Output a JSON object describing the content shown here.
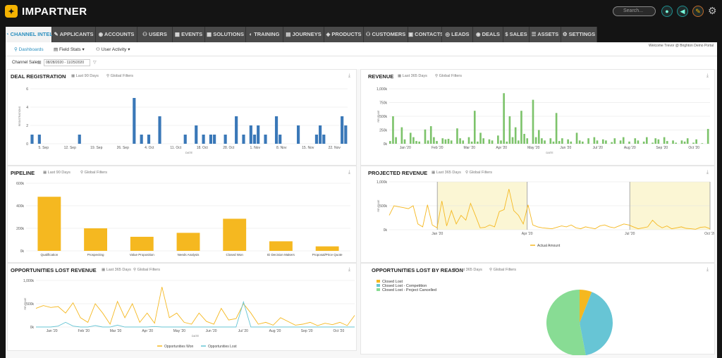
{
  "app": {
    "brand": "IMPARTNER",
    "logo_icon": "hexagon-logo-icon",
    "search_placeholder": "Search..."
  },
  "top_icons": [
    "user-icon",
    "megaphone-icon",
    "pen-icon",
    "gear-icon"
  ],
  "nav_tabs": [
    {
      "label": "CHANNEL INTEL",
      "icon": "chart-icon",
      "active": true
    },
    {
      "label": "APPLICANTS",
      "icon": "pen-icon"
    },
    {
      "label": "ACCOUNTS",
      "icon": "eye-icon"
    },
    {
      "label": "USERS",
      "icon": "users-icon"
    },
    {
      "label": "EVENTS",
      "icon": "calendar-icon"
    },
    {
      "label": "SOLUTIONS",
      "icon": "grid-icon"
    },
    {
      "label": "TRAINING",
      "icon": "training-icon"
    },
    {
      "label": "JOURNEYS",
      "icon": "book-icon"
    },
    {
      "label": "PRODUCTS",
      "icon": "box-icon"
    },
    {
      "label": "CUSTOMERS",
      "icon": "customers-icon"
    },
    {
      "label": "CONTACTS",
      "icon": "contact-card-icon"
    },
    {
      "label": "LEADS",
      "icon": "leads-icon"
    },
    {
      "label": "DEALS",
      "icon": "deals-icon"
    },
    {
      "label": "SALES",
      "icon": "dollar-icon"
    },
    {
      "label": "ASSETS",
      "icon": "list-icon"
    },
    {
      "label": "SETTINGS",
      "icon": "gear-icon"
    }
  ],
  "subnav": {
    "dashboards": "Dashboards",
    "field_stats": "Field Stats",
    "user_activity": "User Activity",
    "welcome": "Welcome Trevor @ Brighton Demo Portal"
  },
  "filter": {
    "label": "Channel Sales",
    "date_range": "08/28/2020 - 11/25/2020"
  },
  "colors": {
    "blue": "#3a78b8",
    "green": "#7dc36b",
    "orange": "#f5b820",
    "pie_teal": "#67c5d5",
    "pie_green": "#88dc94",
    "band": "#fbf6d4"
  },
  "panels": {
    "deal_registration": {
      "title": "DEAL REGISTRATION",
      "range": "Last 90 Days",
      "filter": "Global Filters"
    },
    "revenue": {
      "title": "REVENUE",
      "range": "Last 365 Days",
      "filter": "Global Filters"
    },
    "pipeline": {
      "title": "PIPELINE",
      "range": "Last 90 Days",
      "filter": "Global Filters"
    },
    "projected_revenue": {
      "title": "PROJECTED REVENUE",
      "range": "Last 365 Days",
      "filter": "Global Filters"
    },
    "opportunities_lost_revenue": {
      "title": "OPPORTUNITIES LOST REVENUE",
      "range": "Last 365 Days",
      "filter": "Global Filters"
    },
    "opportunities_lost_by_reason": {
      "title": "OPPORTUNITIES LOST BY REASON",
      "range": "Last 365 Days",
      "filter": "Global Filters"
    }
  },
  "chart_data": [
    {
      "id": "deal_registration",
      "type": "bar",
      "xlabel": "DATE",
      "ylabel": "REGISTRATIONS",
      "ylim": [
        0,
        6
      ],
      "yticks": [
        0,
        2,
        4,
        6
      ],
      "xticks": [
        "5. Sep",
        "12. Sep",
        "19. Sep",
        "26. Sep",
        "4. Oct",
        "11. Oct",
        "18. Oct",
        "28. Oct",
        "1. Nov",
        "8. Nov",
        "15. Nov",
        "22. Nov"
      ],
      "values": [
        1,
        0,
        1,
        0,
        0,
        0,
        0,
        0,
        0,
        0,
        0,
        0,
        0,
        1,
        0,
        0,
        0,
        0,
        0,
        0,
        0,
        0,
        0,
        0,
        0,
        0,
        0,
        0,
        5,
        0,
        1,
        0,
        1,
        0,
        0,
        3,
        0,
        0,
        0,
        0,
        0,
        0,
        1,
        0,
        0,
        2,
        0,
        1,
        0,
        1,
        1,
        0,
        0,
        1,
        0,
        0,
        3,
        0,
        1,
        0,
        2,
        1,
        2,
        0,
        1,
        0,
        0,
        3,
        1,
        0,
        0,
        0,
        0,
        2,
        0,
        0,
        0,
        0,
        1,
        2,
        1,
        0,
        0,
        0,
        0,
        3,
        2
      ]
    },
    {
      "id": "revenue",
      "type": "bar",
      "xlabel": "DATE",
      "ylabel": "REVENUE",
      "ylim": [
        0,
        1000
      ],
      "yticks": [
        "0k",
        "250k",
        "500k",
        "750k",
        "1,000k"
      ],
      "xticks": [
        "Jan '20",
        "Feb '20",
        "Mar '20",
        "Apr '20",
        "May '20",
        "Jun '20",
        "Jul '20",
        "Aug '20",
        "Sep '20",
        "Oct '20"
      ],
      "values": [
        50,
        500,
        120,
        0,
        300,
        80,
        0,
        200,
        120,
        50,
        40,
        0,
        260,
        60,
        320,
        120,
        50,
        0,
        100,
        80,
        90,
        60,
        0,
        280,
        100,
        60,
        0,
        120,
        40,
        600,
        40,
        200,
        100,
        0,
        80,
        60,
        0,
        150,
        60,
        920,
        40,
        500,
        120,
        300,
        60,
        600,
        180,
        100,
        0,
        800,
        120,
        250,
        100,
        60,
        0,
        100,
        40,
        560,
        50,
        100,
        0,
        80,
        40,
        0,
        200,
        60,
        40,
        0,
        100,
        0,
        120,
        60,
        0,
        80,
        60,
        0,
        30,
        100,
        0,
        60,
        120,
        0,
        40,
        0,
        100,
        60,
        0,
        40,
        120,
        0,
        20,
        100,
        80,
        0,
        120,
        50,
        0,
        60,
        20,
        0,
        60,
        40,
        100,
        0,
        20,
        80,
        0,
        10,
        0,
        270
      ]
    },
    {
      "id": "pipeline",
      "type": "bar",
      "ylim": [
        0,
        600
      ],
      "yticks": [
        "0k",
        "200k",
        "400k",
        "600k"
      ],
      "categories": [
        "Qualification",
        "Prospecting",
        "Value Proposition",
        "Needs Analysis",
        "Closed Won",
        "ID Decision Makers",
        "Proposal/Price Quote"
      ],
      "values": [
        480,
        200,
        125,
        160,
        285,
        85,
        40
      ]
    },
    {
      "id": "projected_revenue",
      "type": "line",
      "ylabel": "REVENUE",
      "ylim": [
        0,
        1000
      ],
      "yticks": [
        "0k",
        "500k",
        "1,000k"
      ],
      "xticks": [
        "Jan '20",
        "Apr '20",
        "Jul '20",
        "Oct '20"
      ],
      "series": [
        {
          "name": "Actual Amount",
          "values": [
            300,
            500,
            480,
            460,
            440,
            500,
            120,
            60,
            520,
            100,
            40,
            600,
            80,
            400,
            120,
            300,
            200,
            550,
            300,
            40,
            50,
            100,
            60,
            380,
            420,
            850,
            400,
            300,
            120,
            520,
            100,
            60,
            40,
            30,
            20,
            50,
            80,
            60,
            100,
            40,
            20,
            60,
            40,
            20,
            80,
            100,
            60,
            40,
            80,
            120,
            100,
            60,
            20,
            40,
            60,
            200,
            100,
            40,
            80,
            20,
            40,
            60,
            30,
            20,
            10,
            50,
            60,
            20
          ]
        }
      ]
    },
    {
      "id": "opportunities_lost_revenue",
      "type": "line",
      "xlabel": "DATE",
      "ylabel": "REVENUE",
      "ylim": [
        0,
        1000
      ],
      "yticks": [
        "0k",
        "500k",
        "1,000k"
      ],
      "xticks": [
        "Jan '20",
        "Feb '20",
        "Mar '20",
        "Apr '20",
        "May '20",
        "Jun '20",
        "Jul '20",
        "Aug '20",
        "Sep '20",
        "Oct '20"
      ],
      "series": [
        {
          "name": "Opportunities Won",
          "values": [
            400,
            460,
            420,
            440,
            300,
            520,
            200,
            100,
            500,
            300,
            60,
            550,
            200,
            500,
            100,
            300,
            80,
            860,
            200,
            300,
            100,
            60,
            300,
            120,
            60,
            400,
            150,
            180,
            500,
            300,
            60,
            100,
            40,
            200,
            120,
            40,
            60,
            100,
            30,
            80,
            50,
            100,
            30,
            250
          ]
        },
        {
          "name": "Opportunities Lost",
          "values": [
            0,
            0,
            0,
            20,
            100,
            20,
            0,
            0,
            30,
            0,
            0,
            40,
            0,
            0,
            0,
            0,
            10,
            0,
            0,
            0,
            0,
            0,
            0,
            0,
            0,
            0,
            0,
            0,
            540,
            0,
            0,
            0,
            0,
            0,
            0,
            0,
            0,
            0,
            0,
            0,
            0,
            0,
            0,
            0
          ]
        }
      ]
    },
    {
      "id": "opportunities_lost_by_reason",
      "type": "pie",
      "series": [
        {
          "name": "Closed Lost",
          "value": 6
        },
        {
          "name": "Closed Lost - Competition",
          "value": 41
        },
        {
          "name": "Closed Lost - Project Cancelled",
          "value": 53
        }
      ]
    }
  ]
}
